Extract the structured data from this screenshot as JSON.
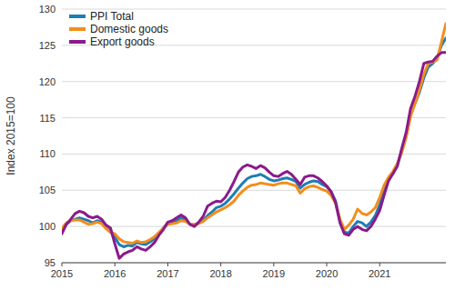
{
  "chart_data": {
    "type": "line",
    "y_label": "Index 2015=100",
    "x": [
      2015,
      2015.083,
      2015.167,
      2015.25,
      2015.333,
      2015.417,
      2015.5,
      2015.583,
      2015.667,
      2015.75,
      2015.833,
      2015.917,
      2016,
      2016.083,
      2016.167,
      2016.25,
      2016.333,
      2016.417,
      2016.5,
      2016.583,
      2016.667,
      2016.75,
      2016.833,
      2016.917,
      2017,
      2017.083,
      2017.167,
      2017.25,
      2017.333,
      2017.417,
      2017.5,
      2017.583,
      2017.667,
      2017.75,
      2017.833,
      2017.917,
      2018,
      2018.083,
      2018.167,
      2018.25,
      2018.333,
      2018.417,
      2018.5,
      2018.583,
      2018.667,
      2018.75,
      2018.833,
      2018.917,
      2019,
      2019.083,
      2019.167,
      2019.25,
      2019.333,
      2019.417,
      2019.5,
      2019.583,
      2019.667,
      2019.75,
      2019.833,
      2019.917,
      2020,
      2020.083,
      2020.167,
      2020.25,
      2020.333,
      2020.417,
      2020.5,
      2020.583,
      2020.667,
      2020.75,
      2020.833,
      2020.917,
      2021,
      2021.083,
      2021.167,
      2021.25,
      2021.333,
      2021.417,
      2021.5,
      2021.583,
      2021.667,
      2021.75,
      2021.833,
      2021.917,
      2022,
      2022.083,
      2022.167,
      2022.25
    ],
    "series": [
      {
        "name": "PPI Total",
        "color": "#1f7db3",
        "values": [
          99.5,
          100.3,
          100.8,
          101,
          101.2,
          101,
          100.8,
          100.5,
          100.8,
          100.6,
          99.8,
          99.3,
          98.5,
          97.5,
          97.2,
          97.4,
          97.3,
          97.8,
          97.6,
          97.5,
          97.9,
          98.3,
          99,
          99.8,
          100.5,
          100.6,
          100.8,
          101.2,
          100.9,
          100.3,
          100.2,
          100.5,
          100.8,
          101.5,
          102,
          102.6,
          102.8,
          103.2,
          103.8,
          104.5,
          105.3,
          106,
          106.6,
          106.9,
          107,
          107.2,
          106.9,
          106.5,
          106.3,
          106.4,
          106.6,
          106.7,
          106.5,
          106.2,
          105.3,
          105.8,
          106.1,
          106.3,
          106.2,
          105.8,
          105.5,
          104.8,
          103.5,
          100.8,
          99.2,
          99.1,
          100,
          100.7,
          100.5,
          100,
          100.6,
          101.5,
          103,
          105,
          106.5,
          107.3,
          108.5,
          110.5,
          112.5,
          115.5,
          117,
          118.5,
          120.5,
          122,
          122.5,
          123.2,
          125,
          126
        ]
      },
      {
        "name": "Domestic goods",
        "color": "#f28e1c",
        "values": [
          99.8,
          100.5,
          100.8,
          100.9,
          100.9,
          100.6,
          100.3,
          100.4,
          100.6,
          100.4,
          99.7,
          99.2,
          99,
          98.3,
          97.9,
          97.8,
          97.7,
          98,
          97.8,
          97.9,
          98.2,
          98.6,
          99.2,
          99.8,
          100.3,
          100.4,
          100.5,
          100.8,
          100.7,
          100.3,
          100.3,
          100.4,
          100.7,
          101.2,
          101.6,
          102,
          102.3,
          102.6,
          103,
          103.5,
          104.3,
          104.9,
          105.4,
          105.7,
          105.8,
          106,
          105.9,
          105.8,
          105.7,
          105.9,
          106,
          106,
          105.8,
          105.6,
          104.6,
          105.2,
          105.5,
          105.6,
          105.4,
          105.1,
          104.9,
          104.3,
          103.2,
          101,
          99.6,
          100.2,
          101,
          102.4,
          101.8,
          101.6,
          102,
          102.6,
          104,
          105.7,
          106.8,
          107.6,
          108.7,
          110.2,
          112.3,
          115.2,
          117,
          118.8,
          121,
          122.5,
          122.7,
          123,
          125.5,
          128
        ]
      },
      {
        "name": "Export goods",
        "color": "#8b1a8b",
        "values": [
          99,
          100.3,
          101,
          101.8,
          102.1,
          101.9,
          101.4,
          101.2,
          101.4,
          101,
          100.2,
          99.8,
          97.6,
          95.6,
          96.2,
          96.5,
          96.7,
          97.2,
          96.9,
          96.7,
          97.2,
          97.8,
          98.8,
          99.6,
          100.6,
          100.8,
          101.2,
          101.6,
          101.2,
          100.3,
          100,
          100.6,
          101.4,
          102.8,
          103.2,
          103.5,
          103.4,
          104,
          105,
          106.2,
          107.5,
          108.2,
          108.5,
          108.3,
          108,
          108.4,
          108.1,
          107.5,
          107,
          106.9,
          107.3,
          107.6,
          107.2,
          106.5,
          105.8,
          106.8,
          107,
          107,
          106.7,
          106.2,
          105.6,
          104.8,
          103.3,
          100.5,
          99,
          98.8,
          99.6,
          100,
          99.6,
          99.4,
          100,
          101,
          102.2,
          104.3,
          106.3,
          107.3,
          108.3,
          110.8,
          113,
          116.3,
          118,
          120,
          122.5,
          122.7,
          122.8,
          123.5,
          124,
          124
        ]
      }
    ],
    "xlim": [
      2015,
      2022.25
    ],
    "xticks": [
      2015,
      2016,
      2017,
      2018,
      2019,
      2020,
      2021
    ],
    "ylim": [
      95,
      130
    ],
    "yticks": [
      95,
      100,
      105,
      110,
      115,
      120,
      125,
      130
    ],
    "grid": true,
    "legend": "top-left"
  }
}
